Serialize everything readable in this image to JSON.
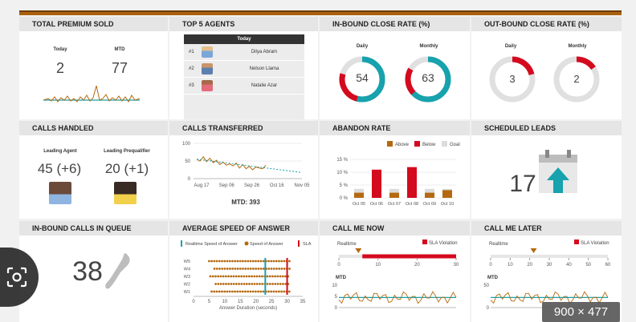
{
  "panels": {
    "total_premium": {
      "title": "TOTAL PREMIUM SOLD",
      "today_label": "Today",
      "today_value": "2",
      "mtd_label": "MTD",
      "mtd_value": "77"
    },
    "top_agents": {
      "title": "TOP 5 AGENTS",
      "header": "Today",
      "rows": [
        {
          "rank": "#1",
          "name": "Dilya Abram"
        },
        {
          "rank": "#2",
          "name": "Nelson Llama"
        },
        {
          "rank": "#3",
          "name": "Natalie Azar"
        }
      ]
    },
    "inbound_close": {
      "title": "IN-BOUND CLOSE RATE (%)",
      "daily_label": "Daily",
      "daily_value": "54",
      "daily_fraction": 0.54,
      "monthly_label": "Monthly",
      "monthly_value": "63",
      "monthly_fraction": 0.63
    },
    "outbound_close": {
      "title": "OUT-BOUND CLOSE RATE (%)",
      "daily_label": "Daily",
      "daily_value": "3",
      "monthly_label": "Monthly",
      "monthly_value": "2"
    },
    "calls_handled": {
      "title": "CALLS HANDLED",
      "agent_label": "Leading Agent",
      "agent_value": "45 (+6)",
      "preq_label": "Leading Prequalifier",
      "preq_value": "20 (+1)"
    },
    "calls_transferred": {
      "title": "CALLS TRANSFERRED",
      "mtd": "MTD: 393"
    },
    "abandon_rate": {
      "title": "ABANDON RATE"
    },
    "scheduled_leads": {
      "title": "SCHEDULED LEADS",
      "value": "17"
    },
    "inbound_queue": {
      "title": "IN-BOUND CALLS IN QUEUE",
      "value": "38"
    },
    "avg_speed": {
      "title": "AVERAGE SPEED OF ANSWER"
    },
    "call_me_now": {
      "title": "CALL ME NOW"
    },
    "call_me_later": {
      "title": "CALL ME LATER"
    }
  },
  "colors": {
    "orange": "#b5690f",
    "red": "#d40a1e",
    "teal": "#17a2ad",
    "gray": "#dcdcdc",
    "accent_bar": "#a9610f"
  },
  "badge": "900 × 477",
  "chart_data": [
    {
      "type": "line",
      "name_ref": "calls_transferred",
      "x_ticks": [
        "Aug 17",
        "Sep 06",
        "Sep 26",
        "Oct 16",
        "Nov 05"
      ],
      "y_ticks": [
        "100",
        "50",
        "0"
      ],
      "ylim": [
        0,
        100
      ],
      "values": [
        55,
        50,
        62,
        48,
        58,
        45,
        52,
        40,
        47,
        38,
        42,
        36,
        44,
        30,
        40,
        28,
        35,
        25,
        33,
        30,
        28,
        38
      ]
    },
    {
      "type": "bar",
      "name_ref": "abandon_rate",
      "legend": [
        "Above",
        "Below",
        "Goal"
      ],
      "categories": [
        "Oct 05",
        "Oct 06",
        "Oct 07",
        "Oct 08",
        "Oct 09",
        "Oct 10"
      ],
      "y_ticks": [
        "15 %",
        "10 %",
        "5 %",
        "0 %"
      ],
      "ylim": [
        0,
        15
      ],
      "goal": [
        3.5,
        3.5,
        3.5,
        3.5,
        3.5,
        3.5
      ],
      "values": [
        2,
        11,
        2,
        12,
        2,
        3
      ],
      "status": [
        "above",
        "below",
        "above",
        "below",
        "above",
        "above"
      ]
    },
    {
      "type": "scatter",
      "name_ref": "avg_speed",
      "legend": [
        "Realtime Speed of Answer",
        "Speed of Answer",
        "SLA"
      ],
      "rows": [
        "W5",
        "W4",
        "W3",
        "W2",
        "W1"
      ],
      "x_ticks": [
        "0",
        "5",
        "10",
        "15",
        "20",
        "25",
        "30",
        "35"
      ],
      "xlabel": "Answer Duration (seconds)",
      "xlim": [
        0,
        35
      ],
      "realtime": 23,
      "sla": 30
    },
    {
      "type": "bar",
      "name_ref": "call_me_now",
      "realtime_label": "Realtime",
      "sla_label": "SLA Violation",
      "x_ticks": [
        "0",
        "10",
        "20",
        "30"
      ],
      "xlim": [
        0,
        30
      ],
      "realtime": 5,
      "sla_start": 6,
      "mtd_label": "MTD",
      "mtd_ticks": [
        "10",
        "5",
        "0"
      ],
      "mtd_goal": 5
    },
    {
      "type": "bar",
      "name_ref": "call_me_later",
      "realtime_label": "Realtime",
      "sla_label": "SLA Violation",
      "x_ticks": [
        "0",
        "10",
        "20",
        "30",
        "40",
        "50",
        "60"
      ],
      "xlim": [
        0,
        60
      ],
      "realtime": 22,
      "mtd_label": "MTD",
      "mtd_ticks": [
        "50",
        "0"
      ],
      "mtd_goal": 5
    }
  ]
}
